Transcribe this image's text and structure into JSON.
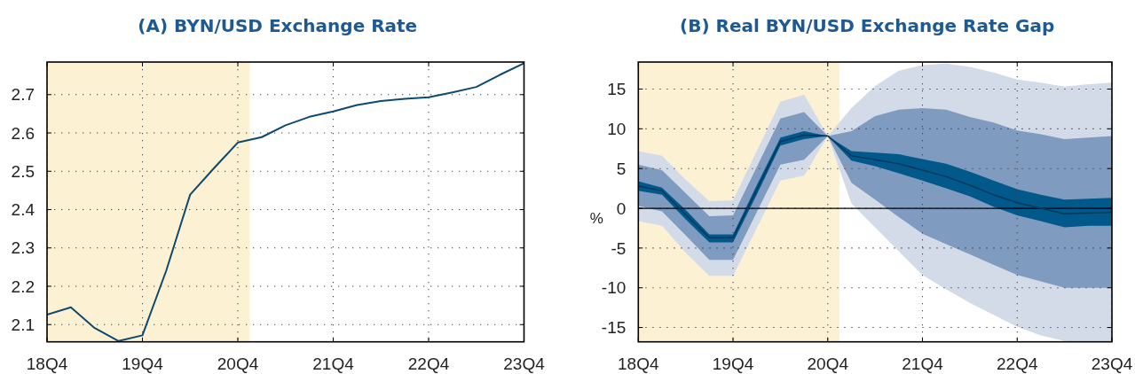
{
  "chart_data": [
    {
      "type": "line",
      "title": "(A) BYN/USD Exchange Rate",
      "categories": [
        "18Q4",
        null,
        null,
        null,
        "19Q4",
        null,
        null,
        null,
        "20Q4",
        null,
        null,
        null,
        "21Q4",
        null,
        null,
        null,
        "22Q4",
        null,
        null,
        null,
        "23Q4"
      ],
      "ylim": [
        2.055,
        2.785
      ],
      "yticks": [
        2.1,
        2.2,
        2.3,
        2.4,
        2.5,
        2.6,
        2.7
      ],
      "grid": true,
      "bands": [
        {
          "axis": "x",
          "from": "18Q4",
          "to": "20Q4",
          "color": "#fdf1d4"
        }
      ],
      "series": [
        {
          "color": "#0e4a6f",
          "values": [
            2.126,
            2.145,
            2.091,
            2.057,
            2.072,
            2.241,
            2.439,
            2.508,
            2.575,
            2.589,
            2.62,
            2.642,
            2.656,
            2.673,
            2.683,
            2.689,
            2.693,
            2.706,
            2.72,
            2.752,
            2.782
          ]
        }
      ]
    },
    {
      "type": "line",
      "title": "(B) Real BYN/USD Exchange Rate Gap",
      "ylabel": "%",
      "categories": [
        "18Q4",
        null,
        null,
        null,
        "19Q4",
        null,
        null,
        null,
        "20Q4",
        null,
        null,
        null,
        "21Q4",
        null,
        null,
        null,
        "22Q4",
        null,
        null,
        null,
        "23Q4"
      ],
      "ylim": [
        -16.8,
        18.4
      ],
      "yticks": [
        -15,
        -10,
        -5,
        0,
        5,
        10,
        15
      ],
      "grid": true,
      "bands": [
        {
          "axis": "x",
          "from": "18Q4",
          "to": "20Q4",
          "color": "#fdf1d4"
        }
      ],
      "ref_lines": [
        {
          "axis": "y",
          "value": 0,
          "color": "#000000"
        }
      ],
      "series": [
        {
          "color": "#d3dbe8",
          "values": [
            null,
            null,
            null,
            null,
            null,
            null,
            null,
            null,
            null,
            null,
            null,
            null,
            null,
            null,
            null,
            null,
            null,
            null,
            null,
            null,
            null
          ],
          "upper": [
            7.2,
            6.6,
            3.6,
            0.9,
            1.0,
            7.2,
            13.4,
            14.3,
            9.1,
            12.6,
            15.4,
            17.3,
            18.0,
            18.2,
            17.8,
            17.1,
            16.2,
            15.8,
            15.3,
            15.6,
            15.8
          ],
          "lower": [
            -1.6,
            -2.2,
            -5.6,
            -8.5,
            -8.5,
            -2.5,
            3.5,
            4.1,
            9.1,
            0.6,
            -2.4,
            -5.4,
            -8.4,
            -10.2,
            -11.9,
            -13.4,
            -14.9,
            -16.0,
            -16.7,
            -16.8,
            -16.8
          ]
        },
        {
          "color": "#7f9bc0",
          "values": [
            null,
            null,
            null,
            null,
            null,
            null,
            null,
            null,
            null,
            null,
            null,
            null,
            null,
            null,
            null,
            null,
            null,
            null,
            null,
            null,
            null
          ],
          "upper": [
            5.5,
            4.8,
            1.9,
            -1.0,
            -0.9,
            5.2,
            11.3,
            12.1,
            9.1,
            9.7,
            11.6,
            12.4,
            12.6,
            12.4,
            11.5,
            10.8,
            9.8,
            9.3,
            8.7,
            8.9,
            9.1
          ],
          "lower": [
            0.3,
            -0.4,
            -3.4,
            -6.5,
            -6.5,
            -0.5,
            5.5,
            6.1,
            9.1,
            3.2,
            1.1,
            -1.1,
            -3.2,
            -4.5,
            -5.8,
            -7.1,
            -8.4,
            -9.2,
            -10.0,
            -10.0,
            -10.0
          ]
        },
        {
          "color": "#00588b",
          "values": [
            null,
            null,
            null,
            null,
            null,
            null,
            null,
            null,
            null,
            null,
            null,
            null,
            null,
            null,
            null,
            null,
            null,
            null,
            null,
            null,
            null
          ],
          "upper": [
            3.4,
            2.6,
            -0.2,
            -3.3,
            -3.3,
            2.9,
            8.9,
            9.7,
            9.1,
            7.2,
            7.0,
            6.8,
            6.2,
            5.6,
            4.6,
            3.5,
            2.4,
            1.7,
            1.1,
            1.2,
            1.3
          ],
          "lower": [
            2.2,
            1.7,
            -1.4,
            -4.3,
            -4.3,
            1.7,
            7.9,
            8.7,
            9.1,
            6.0,
            5.3,
            4.4,
            3.5,
            2.5,
            1.5,
            0.2,
            -0.9,
            -1.6,
            -2.4,
            -2.2,
            -2.2
          ]
        },
        {
          "color": "#003a5e",
          "values": [
            2.8,
            2.2,
            -0.8,
            -3.7,
            -3.7,
            2.3,
            8.4,
            9.2,
            9.1,
            6.6,
            6.1,
            5.6,
            4.8,
            4.0,
            2.9,
            1.7,
            0.7,
            0.0,
            -0.7,
            -0.6,
            -0.5
          ]
        }
      ]
    }
  ]
}
